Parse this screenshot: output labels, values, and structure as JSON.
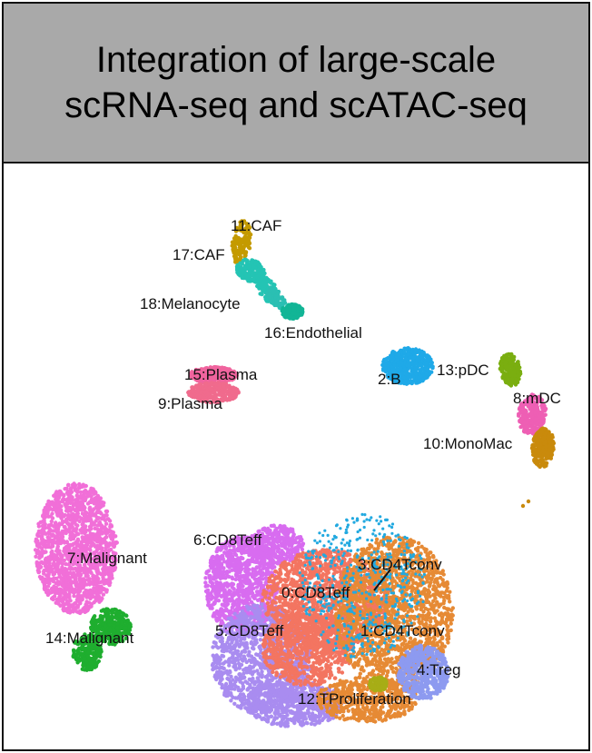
{
  "header": {
    "title_line1": "Integration of large-scale",
    "title_line2": "scRNA-seq and scATAC-seq"
  },
  "chart_data": {
    "type": "scatter",
    "title": "Integration of large-scale scRNA-seq and scATAC-seq",
    "xlabel": "",
    "ylabel": "",
    "axes_visible": false,
    "grid": false,
    "legend": "none",
    "clusters": [
      {
        "id": 11,
        "label": "11:CAF",
        "color": "#c49a00"
      },
      {
        "id": 17,
        "label": "17:CAF",
        "color": "#24c4b4"
      },
      {
        "id": 18,
        "label": "18:Melanocyte",
        "color": "#2bbfb3"
      },
      {
        "id": 16,
        "label": "16:Endothelial",
        "color": "#12b596"
      },
      {
        "id": 15,
        "label": "15:Plasma",
        "color": "#f0649e"
      },
      {
        "id": 9,
        "label": "9:Plasma",
        "color": "#f06b8d"
      },
      {
        "id": 2,
        "label": "2:B",
        "color": "#1fa9e8"
      },
      {
        "id": 13,
        "label": "13:pDC",
        "color": "#7aae10"
      },
      {
        "id": 8,
        "label": "8:mDC",
        "color": "#ee5fb4"
      },
      {
        "id": 10,
        "label": "10:MonoMac",
        "color": "#c98a0c"
      },
      {
        "id": 7,
        "label": "7:Malignant",
        "color": "#f16fd8"
      },
      {
        "id": 14,
        "label": "14:Malignant",
        "color": "#1fae2f"
      },
      {
        "id": 6,
        "label": "6:CD8Teff",
        "color": "#d86cf0"
      },
      {
        "id": 3,
        "label": "3:CD4Tconv",
        "color": "#22a9e0"
      },
      {
        "id": 0,
        "label": "0:CD8Teff",
        "color": "#f37561"
      },
      {
        "id": 5,
        "label": "5:CD8Teff",
        "color": "#a98cf0"
      },
      {
        "id": 1,
        "label": "1:CD4Tconv",
        "color": "#e68a35"
      },
      {
        "id": 4,
        "label": "4:Treg",
        "color": "#8d9af0"
      },
      {
        "id": 12,
        "label": "12:TProliferation",
        "color": "#a7ad16"
      }
    ]
  }
}
